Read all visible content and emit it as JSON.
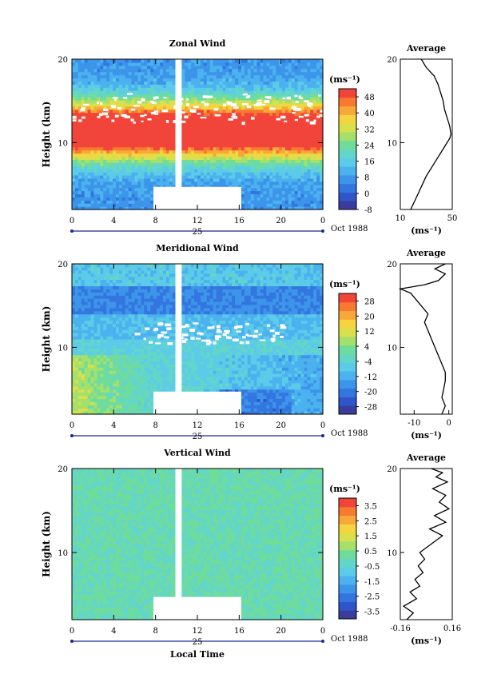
{
  "chart_data": [
    {
      "type": "heatmap",
      "title": "Zonal Wind",
      "ylabel": "Height (km)",
      "xlim": [
        0,
        24
      ],
      "ylim": [
        2,
        20
      ],
      "xticks": [
        "0",
        "4",
        "8",
        "12",
        "16",
        "20",
        "0"
      ],
      "yticks": [
        "10",
        "20"
      ],
      "date_label": "25",
      "month_label": "Oct 1988",
      "colorbar": {
        "unit": "(ms⁻¹)",
        "ticks": [
          "48",
          "40",
          "32",
          "24",
          "16",
          "8",
          "0",
          "-8"
        ],
        "range": [
          -8,
          52
        ]
      },
      "profile": {
        "title": "Average",
        "xlim": [
          10,
          50
        ],
        "xticks": [
          "10",
          "50"
        ],
        "xlabel": "(ms⁻¹)",
        "yticks": [
          "10",
          "20"
        ],
        "x": [
          18,
          21,
          24,
          27,
          30,
          34,
          38,
          42,
          46,
          48,
          49,
          48,
          46,
          44,
          43,
          41,
          39,
          36,
          33,
          30,
          28,
          27,
          26
        ],
        "y": [
          2,
          3,
          4,
          5,
          6,
          7,
          8,
          9,
          10,
          10.5,
          11,
          12,
          13,
          14,
          15,
          16,
          17,
          18,
          18.5,
          19,
          19.5,
          19.8,
          20
        ]
      }
    },
    {
      "type": "heatmap",
      "title": "Meridional Wind",
      "ylabel": "Height (km)",
      "xlim": [
        0,
        24
      ],
      "ylim": [
        2,
        20
      ],
      "xticks": [
        "0",
        "4",
        "8",
        "12",
        "16",
        "20",
        "0"
      ],
      "yticks": [
        "10",
        "20"
      ],
      "date_label": "25",
      "month_label": "Oct 1988",
      "colorbar": {
        "unit": "(ms⁻¹)",
        "ticks": [
          "28",
          "20",
          "12",
          "4",
          "-4",
          "-12",
          "-20",
          "-28"
        ],
        "range": [
          -32,
          32
        ]
      },
      "profile": {
        "title": "Average",
        "xlim": [
          -14,
          1
        ],
        "xticks": [
          "-10",
          "0"
        ],
        "xlabel": "(ms⁻¹)",
        "yticks": [
          "10",
          "20"
        ],
        "x": [
          -2,
          -1,
          -2,
          -1.5,
          -1,
          -1,
          -2,
          -3,
          -4,
          -5,
          -6,
          -7,
          -6,
          -8,
          -10,
          -11,
          -14,
          -7,
          -3,
          -1,
          -4,
          -1
        ],
        "y": [
          2,
          3,
          4,
          5,
          6,
          7,
          8,
          9,
          10,
          11,
          12,
          13,
          14,
          15,
          16,
          16.5,
          17,
          17.5,
          18,
          18.8,
          19.4,
          20
        ]
      }
    },
    {
      "type": "heatmap",
      "title": "Vertical Wind",
      "ylabel": "Height (km)",
      "xlabel": "Local Time",
      "xlim": [
        0,
        24
      ],
      "ylim": [
        2,
        20
      ],
      "xticks": [
        "0",
        "4",
        "8",
        "12",
        "16",
        "20",
        "0"
      ],
      "yticks": [
        "10",
        "20"
      ],
      "date_label": "25",
      "month_label": "Oct 1988",
      "colorbar": {
        "unit": "(ms⁻¹)",
        "ticks": [
          "3.5",
          "2.5",
          "1.5",
          "0.5",
          "-0.5",
          "-1.5",
          "-2.5",
          "-3.5"
        ],
        "range": [
          -4,
          4
        ]
      },
      "profile": {
        "title": "Average",
        "xlim": [
          -0.16,
          0.16
        ],
        "xticks": [
          "-0.16",
          "0.16"
        ],
        "xlabel": "(ms⁻¹)",
        "yticks": [
          "10",
          "20"
        ],
        "x": [
          -0.12,
          -0.08,
          -0.14,
          -0.06,
          -0.1,
          -0.04,
          -0.07,
          -0.02,
          -0.05,
          -0.01,
          -0.04,
          0.03,
          0.1,
          0.02,
          0.12,
          0.05,
          0.14,
          0.08,
          0.12,
          0.04,
          0.13,
          0.06,
          0.1,
          0.03
        ],
        "y": [
          2,
          2.8,
          3.6,
          4.5,
          5.3,
          6,
          6.8,
          7.6,
          8.4,
          9.2,
          10,
          11,
          12,
          12.8,
          13.6,
          14.4,
          15.2,
          16,
          16.8,
          17.6,
          18.4,
          19,
          19.5,
          20
        ]
      }
    }
  ]
}
